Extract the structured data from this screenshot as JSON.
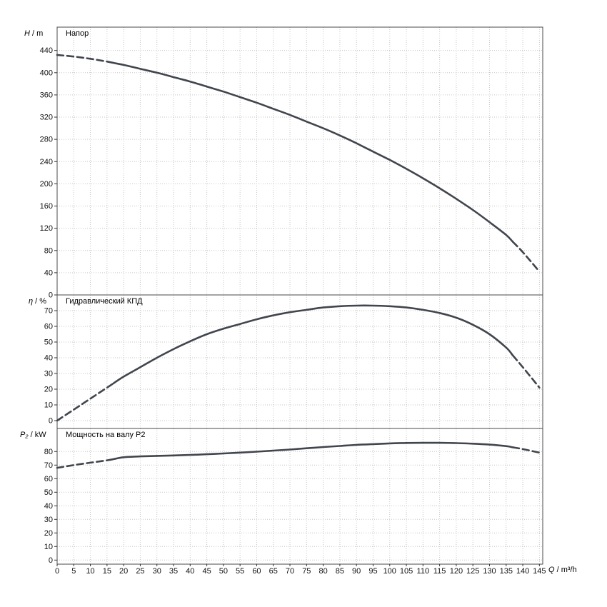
{
  "chart": {
    "background": "#ffffff",
    "curve_color": "#41454d",
    "grid_color": "#c6c6c6",
    "border_color": "#4a4a4a",
    "tick_color": "#333333"
  },
  "xaxis": {
    "label_var": "Q",
    "label_unit": " / m³/h",
    "xlim": [
      0,
      146
    ],
    "ticks": [
      0,
      5,
      10,
      15,
      20,
      25,
      30,
      35,
      40,
      45,
      50,
      55,
      60,
      65,
      70,
      75,
      80,
      85,
      90,
      95,
      100,
      105,
      110,
      115,
      120,
      125,
      130,
      135,
      140,
      145
    ]
  },
  "chart_data": [
    {
      "type": "line",
      "title": "Напор",
      "ylabel_var": "H",
      "ylabel_unit": " / m",
      "ylim": [
        0,
        482
      ],
      "yticks": [
        0,
        40,
        80,
        120,
        160,
        200,
        240,
        280,
        320,
        360,
        400,
        440
      ],
      "x": [
        0,
        5,
        10,
        15,
        20,
        25,
        30,
        35,
        40,
        45,
        50,
        55,
        60,
        65,
        70,
        75,
        80,
        85,
        90,
        95,
        100,
        105,
        110,
        115,
        120,
        125,
        130,
        135,
        140,
        145
      ],
      "y": [
        432,
        429,
        425,
        420,
        414,
        407,
        400,
        392,
        384,
        375,
        366,
        356,
        346,
        335,
        324,
        312,
        300,
        287,
        273,
        258,
        243,
        227,
        210,
        192,
        173,
        153,
        131,
        108,
        77,
        42
      ],
      "solid_range": [
        17,
        137
      ]
    },
    {
      "type": "line",
      "title": "Гидравлический КПД",
      "ylabel_var": "η",
      "ylabel_unit": " / %",
      "ylim": [
        -5,
        80
      ],
      "yticks": [
        0,
        10,
        20,
        30,
        40,
        50,
        60,
        70
      ],
      "x": [
        0,
        5,
        10,
        15,
        20,
        25,
        30,
        35,
        40,
        45,
        50,
        55,
        60,
        65,
        70,
        75,
        80,
        85,
        90,
        95,
        100,
        105,
        110,
        115,
        120,
        125,
        130,
        135,
        140,
        145
      ],
      "y": [
        0,
        7,
        14,
        21,
        28,
        34,
        40,
        45.5,
        50.5,
        55,
        58.5,
        61.5,
        64.5,
        67,
        69,
        70.5,
        72,
        72.8,
        73.2,
        73.2,
        72.8,
        72,
        70.5,
        68.5,
        65.5,
        61,
        55,
        46.5,
        34,
        21
      ],
      "solid_range": [
        17,
        137
      ]
    },
    {
      "type": "line",
      "title": "Мощность на валу P2",
      "ylabel_var": "P₂",
      "ylabel_unit": " / kW",
      "ylim": [
        -3,
        97
      ],
      "yticks": [
        0,
        10,
        20,
        30,
        40,
        50,
        60,
        70,
        80
      ],
      "x": [
        0,
        5,
        10,
        15,
        20,
        25,
        30,
        35,
        40,
        45,
        50,
        55,
        60,
        65,
        70,
        75,
        80,
        85,
        90,
        95,
        100,
        105,
        110,
        115,
        120,
        125,
        130,
        135,
        140,
        145
      ],
      "y": [
        68,
        70,
        71.8,
        73.5,
        75.8,
        76.4,
        76.8,
        77.1,
        77.5,
        78,
        78.6,
        79.2,
        79.9,
        80.7,
        81.5,
        82.4,
        83.3,
        84.1,
        84.9,
        85.5,
        86,
        86.3,
        86.4,
        86.4,
        86.2,
        85.8,
        85.1,
        84,
        81.8,
        79.2
      ],
      "solid_range": [
        17,
        137
      ]
    }
  ]
}
